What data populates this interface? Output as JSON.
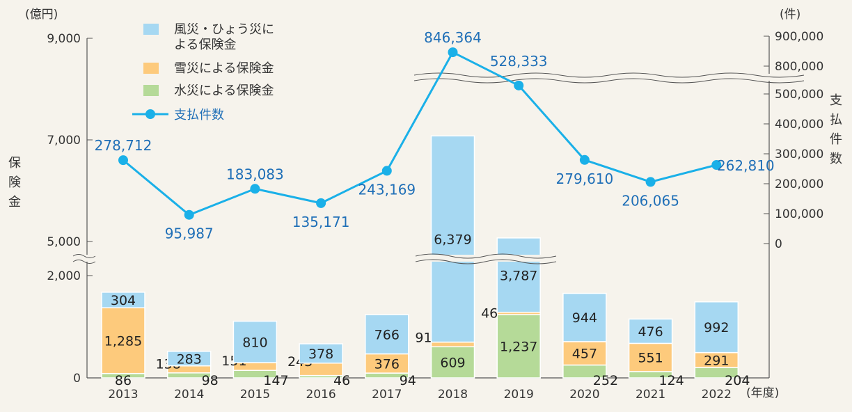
{
  "chart_data": {
    "type": "bar+line",
    "categories": [
      "2013",
      "2014",
      "2015",
      "2016",
      "2017",
      "2018",
      "2019",
      "2020",
      "2021",
      "2022"
    ],
    "series": [
      {
        "name": "水災による保険金",
        "type": "bar",
        "axis": "left",
        "color": "#b5da98",
        "values": [
          86,
          98,
          147,
          46,
          94,
          609,
          1237,
          252,
          124,
          204
        ]
      },
      {
        "name": "雪災による保険金",
        "type": "bar",
        "axis": "left",
        "color": "#fdca7c",
        "values": [
          1285,
          138,
          151,
          243,
          376,
          91,
          46,
          457,
          551,
          291
        ]
      },
      {
        "name": "風災・ひょう災による保険金",
        "type": "bar",
        "axis": "left",
        "color": "#a6d8f2",
        "values": [
          304,
          283,
          810,
          378,
          766,
          6379,
          3787,
          944,
          476,
          992
        ]
      },
      {
        "name": "支払件数",
        "type": "line",
        "axis": "right",
        "color": "#1ab0e8",
        "values": [
          278712,
          95987,
          183083,
          135171,
          243169,
          846364,
          528333,
          279610,
          206065,
          262810
        ]
      }
    ],
    "value_labels": {
      "water": [
        "86",
        "98",
        "147",
        "46",
        "94",
        "609",
        "1,237",
        "252",
        "124",
        "204"
      ],
      "snow": [
        "1,285",
        "138",
        "151",
        "243",
        "376",
        "91",
        "46",
        "457",
        "551",
        "291"
      ],
      "wind": [
        "304",
        "283",
        "810",
        "378",
        "766",
        "6,379",
        "3,787",
        "944",
        "476",
        "992"
      ],
      "count": [
        "278,712",
        "95,987",
        "183,083",
        "135,171",
        "243,169",
        "846,364",
        "528,333",
        "279,610",
        "206,065",
        "262,810"
      ]
    },
    "left_axis": {
      "unit": "(億円)",
      "label": "保険金",
      "ticks": [
        "0",
        "2,000",
        "5,000",
        "7,000",
        "9,000"
      ],
      "tick_values": [
        0,
        2000,
        5000,
        7000,
        9000
      ],
      "broken_range": [
        2000,
        5000
      ]
    },
    "right_axis": {
      "unit": "(件)",
      "label": "支払件数",
      "ticks": [
        "0",
        "100,000",
        "200,000",
        "300,000",
        "400,000",
        "500,000",
        "800,000",
        "900,000"
      ],
      "tick_values": [
        0,
        100000,
        200000,
        300000,
        400000,
        500000,
        800000,
        900000
      ],
      "broken_range": [
        500000,
        800000
      ]
    },
    "x_unit": "(年度)",
    "legend": {
      "placement": "top-left",
      "items": [
        "風災・ひょう災に",
        "よる保険金",
        "雪災による保険金",
        "水災による保険金",
        "支払件数"
      ]
    }
  }
}
